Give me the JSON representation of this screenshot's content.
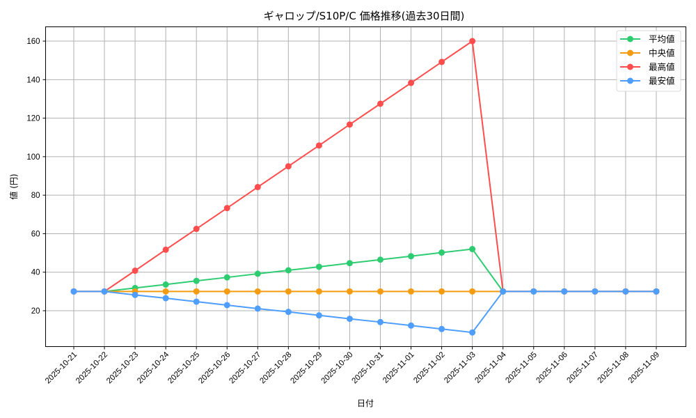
{
  "chart_data": {
    "type": "line",
    "title": "ギャロップ/S10P/C 価格推移(過去30日間)",
    "xlabel": "日付",
    "ylabel": "値 (円)",
    "ylim": [
      1.2,
      167.5
    ],
    "yticks": [
      20,
      40,
      60,
      80,
      100,
      120,
      140,
      160
    ],
    "grid": true,
    "legend_position": "upper right",
    "categories": [
      "2025-10-21",
      "2025-10-22",
      "2025-10-23",
      "2025-10-24",
      "2025-10-25",
      "2025-10-26",
      "2025-10-27",
      "2025-10-28",
      "2025-10-29",
      "2025-10-30",
      "2025-10-31",
      "2025-11-01",
      "2025-11-02",
      "2025-11-03",
      "2025-11-04",
      "2025-11-05",
      "2025-11-06",
      "2025-11-07",
      "2025-11-08",
      "2025-11-09"
    ],
    "series": [
      {
        "name": "平均値",
        "color": "#2ecc71",
        "values": [
          30,
          30,
          31.8,
          33.6,
          35.5,
          37.3,
          39.2,
          41.0,
          42.8,
          44.7,
          46.5,
          48.3,
          50.2,
          52.0,
          30,
          30,
          30,
          30,
          30,
          30
        ]
      },
      {
        "name": "中央値",
        "color": "#f39c12",
        "values": [
          30,
          30,
          30,
          30,
          30,
          30,
          30,
          30,
          30,
          30,
          30,
          30,
          30,
          30,
          30,
          30,
          30,
          30,
          30,
          30
        ]
      },
      {
        "name": "最高値",
        "color": "#ff4d4d",
        "values": [
          30,
          30,
          40.8,
          51.7,
          62.5,
          73.3,
          84.2,
          95.0,
          105.8,
          116.7,
          127.5,
          138.3,
          149.2,
          160,
          30,
          30,
          30,
          30,
          30,
          30
        ]
      },
      {
        "name": "最安値",
        "color": "#4d9eff",
        "values": [
          30,
          30,
          28.2,
          26.5,
          24.7,
          22.9,
          21.1,
          19.4,
          17.6,
          15.8,
          14.1,
          12.3,
          10.5,
          8.7,
          30,
          30,
          30,
          30,
          30,
          30
        ]
      }
    ]
  }
}
